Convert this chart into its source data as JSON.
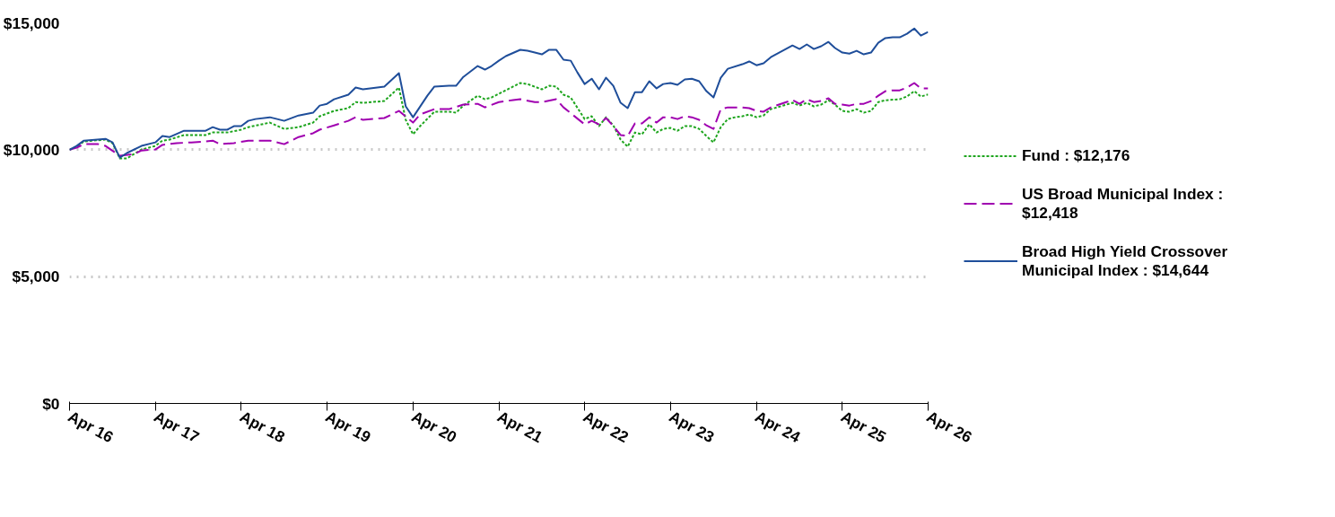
{
  "chart_data": {
    "type": "line",
    "xlim": [
      "2016-04",
      "2026-04"
    ],
    "xticks": [
      {
        "value": "2016-04",
        "label": "Apr 16"
      },
      {
        "value": "2017-04",
        "label": "Apr 17"
      },
      {
        "value": "2018-04",
        "label": "Apr 18"
      },
      {
        "value": "2019-04",
        "label": "Apr 19"
      },
      {
        "value": "2020-04",
        "label": "Apr 20"
      },
      {
        "value": "2021-04",
        "label": "Apr 21"
      },
      {
        "value": "2022-04",
        "label": "Apr 22"
      },
      {
        "value": "2023-04",
        "label": "Apr 23"
      },
      {
        "value": "2024-04",
        "label": "Apr 24"
      },
      {
        "value": "2025-04",
        "label": "Apr 25"
      },
      {
        "value": "2026-04",
        "label": "Apr 26"
      }
    ],
    "ylim": [
      0,
      15000
    ],
    "yticks": [
      {
        "value": 0,
        "label": "$0"
      },
      {
        "value": 5000,
        "label": "$5,000"
      },
      {
        "value": 10000,
        "label": "$10,000"
      },
      {
        "value": 15000,
        "label": "$15,000"
      }
    ],
    "grid": "y",
    "legend": "right",
    "series": [
      {
        "name": "Fund : $12,176",
        "color": "#1ea51e",
        "line_style": "dotted",
        "x": [
          "2016-04",
          "2016-05",
          "2016-06",
          "2016-09",
          "2016-10",
          "2016-11",
          "2016-12",
          "2017-02",
          "2017-04",
          "2017-05",
          "2017-06",
          "2017-08",
          "2017-11",
          "2017-12",
          "2018-02",
          "2018-04",
          "2018-05",
          "2018-08",
          "2018-10",
          "2018-12",
          "2019-02",
          "2019-03",
          "2019-05",
          "2019-07",
          "2019-08",
          "2019-09",
          "2019-12",
          "2020-02",
          "2020-03",
          "2020-04",
          "2020-05",
          "2020-07",
          "2020-09",
          "2020-10",
          "2020-11",
          "2021-01",
          "2021-02",
          "2021-03",
          "2021-06",
          "2021-07",
          "2021-08",
          "2021-10",
          "2021-11",
          "2021-12",
          "2022-01",
          "2022-02",
          "2022-04",
          "2022-05",
          "2022-06",
          "2022-07",
          "2022-08",
          "2022-09",
          "2022-10",
          "2022-11",
          "2022-12",
          "2023-01",
          "2023-02",
          "2023-03",
          "2023-04",
          "2023-05",
          "2023-06",
          "2023-07",
          "2023-08",
          "2023-09",
          "2023-10",
          "2023-11",
          "2023-12",
          "2024-01",
          "2024-02",
          "2024-03",
          "2024-04",
          "2024-05",
          "2024-06",
          "2024-09",
          "2024-10",
          "2024-11",
          "2024-12",
          "2025-01",
          "2025-02",
          "2025-03",
          "2025-04",
          "2025-05",
          "2025-06",
          "2025-07",
          "2025-08",
          "2025-09",
          "2025-10",
          "2025-12",
          "2026-01",
          "2026-02",
          "2026-03",
          "2026-04"
        ],
        "values": [
          10000,
          10120,
          10330,
          10400,
          10260,
          9660,
          9660,
          10010,
          10150,
          10360,
          10400,
          10580,
          10580,
          10680,
          10680,
          10790,
          10890,
          11070,
          10820,
          10890,
          11070,
          11320,
          11530,
          11640,
          11880,
          11850,
          11920,
          12450,
          11180,
          10610,
          10930,
          11500,
          11500,
          11460,
          11740,
          12130,
          11990,
          12060,
          12490,
          12630,
          12590,
          12380,
          12520,
          12490,
          12170,
          12060,
          11210,
          11320,
          10930,
          11280,
          10960,
          10400,
          10120,
          10680,
          10610,
          11000,
          10680,
          10820,
          10860,
          10750,
          10930,
          10930,
          10820,
          10540,
          10290,
          10890,
          11210,
          11280,
          11320,
          11390,
          11280,
          11350,
          11600,
          11850,
          11740,
          11850,
          11710,
          11780,
          11950,
          11780,
          11530,
          11500,
          11600,
          11460,
          11530,
          11880,
          11950,
          11990,
          12100,
          12310,
          12100,
          12176
        ]
      },
      {
        "name": "US Broad Municipal Index : $12,418",
        "color": "#a000b0",
        "line_style": "dashed",
        "x": [
          "2016-04",
          "2016-05",
          "2016-06",
          "2016-08",
          "2016-09",
          "2016-11",
          "2017-01",
          "2017-02",
          "2017-04",
          "2017-05",
          "2017-07",
          "2017-09",
          "2017-11",
          "2017-12",
          "2018-01",
          "2018-03",
          "2018-05",
          "2018-08",
          "2018-10",
          "2018-12",
          "2019-02",
          "2019-03",
          "2019-05",
          "2019-07",
          "2019-08",
          "2019-09",
          "2019-12",
          "2020-02",
          "2020-04",
          "2020-05",
          "2020-07",
          "2020-09",
          "2020-11",
          "2021-01",
          "2021-02",
          "2021-04",
          "2021-06",
          "2021-07",
          "2021-09",
          "2021-10",
          "2021-12",
          "2022-01",
          "2022-04",
          "2022-05",
          "2022-06",
          "2022-07",
          "2022-08",
          "2022-09",
          "2022-10",
          "2022-11",
          "2022-12",
          "2023-01",
          "2023-02",
          "2023-03",
          "2023-04",
          "2023-05",
          "2023-06",
          "2023-07",
          "2023-08",
          "2023-09",
          "2023-10",
          "2023-11",
          "2023-12",
          "2024-02",
          "2024-03",
          "2024-04",
          "2024-05",
          "2024-06",
          "2024-09",
          "2024-10",
          "2024-11",
          "2024-12",
          "2025-01",
          "2025-02",
          "2025-03",
          "2025-04",
          "2025-05",
          "2025-06",
          "2025-07",
          "2025-08",
          "2025-09",
          "2025-10",
          "2025-11",
          "2025-12",
          "2026-01",
          "2026-02",
          "2026-03",
          "2026-04"
        ],
        "values": [
          10000,
          10080,
          10220,
          10220,
          10150,
          9760,
          9830,
          9970,
          10010,
          10190,
          10260,
          10290,
          10330,
          10360,
          10220,
          10260,
          10360,
          10360,
          10220,
          10500,
          10650,
          10790,
          10960,
          11140,
          11280,
          11180,
          11250,
          11530,
          11070,
          11390,
          11600,
          11600,
          11780,
          11810,
          11670,
          11880,
          11960,
          11990,
          11880,
          11880,
          11990,
          11670,
          11000,
          11140,
          11000,
          11250,
          10930,
          10580,
          10540,
          11040,
          11040,
          11280,
          11070,
          11280,
          11280,
          11210,
          11320,
          11280,
          11180,
          10960,
          10820,
          11600,
          11670,
          11670,
          11640,
          11530,
          11500,
          11670,
          11960,
          11810,
          11990,
          11880,
          11920,
          12030,
          11810,
          11780,
          11740,
          11810,
          11810,
          11920,
          12130,
          12310,
          12340,
          12340,
          12450,
          12630,
          12420,
          12418
        ]
      },
      {
        "name": "Broad High Yield Crossover Municipal Index : $14,644",
        "color": "#1f4e9a",
        "line_style": "solid",
        "x": [
          "2016-04",
          "2016-05",
          "2016-06",
          "2016-09",
          "2016-10",
          "2016-11",
          "2016-12",
          "2017-02",
          "2017-04",
          "2017-05",
          "2017-06",
          "2017-08",
          "2017-09",
          "2017-11",
          "2017-12",
          "2018-01",
          "2018-02",
          "2018-03",
          "2018-04",
          "2018-05",
          "2018-06",
          "2018-08",
          "2018-09",
          "2018-10",
          "2018-12",
          "2019-02",
          "2019-03",
          "2019-04",
          "2019-05",
          "2019-07",
          "2019-08",
          "2019-09",
          "2019-11",
          "2019-12",
          "2020-02",
          "2020-03",
          "2020-04",
          "2020-06",
          "2020-07",
          "2020-09",
          "2020-10",
          "2020-11",
          "2021-01",
          "2021-02",
          "2021-03",
          "2021-04",
          "2021-05",
          "2021-07",
          "2021-08",
          "2021-09",
          "2021-10",
          "2021-11",
          "2021-12",
          "2022-01",
          "2022-02",
          "2022-03",
          "2022-04",
          "2022-05",
          "2022-06",
          "2022-07",
          "2022-08",
          "2022-09",
          "2022-10",
          "2022-11",
          "2022-12",
          "2023-01",
          "2023-02",
          "2023-03",
          "2023-04",
          "2023-05",
          "2023-06",
          "2023-07",
          "2023-08",
          "2023-09",
          "2023-10",
          "2023-11",
          "2023-12",
          "2024-02",
          "2024-03",
          "2024-04",
          "2024-05",
          "2024-06",
          "2024-09",
          "2024-10",
          "2024-11",
          "2024-12",
          "2025-01",
          "2025-02",
          "2025-03",
          "2025-04",
          "2025-05",
          "2025-06",
          "2025-07",
          "2025-08",
          "2025-09",
          "2025-10",
          "2025-11",
          "2025-12",
          "2026-01",
          "2026-02",
          "2026-03",
          "2026-04"
        ],
        "values": [
          10000,
          10150,
          10360,
          10430,
          10290,
          9690,
          9870,
          10150,
          10290,
          10540,
          10500,
          10750,
          10750,
          10750,
          10890,
          10790,
          10790,
          10930,
          10930,
          11140,
          11210,
          11280,
          11210,
          11140,
          11350,
          11460,
          11740,
          11810,
          11990,
          12170,
          12450,
          12380,
          12450,
          12490,
          13020,
          11710,
          11280,
          12130,
          12490,
          12520,
          12520,
          12870,
          13300,
          13160,
          13300,
          13510,
          13690,
          13940,
          13900,
          13830,
          13760,
          13940,
          13940,
          13550,
          13510,
          13050,
          12590,
          12800,
          12380,
          12840,
          12520,
          11850,
          11640,
          12270,
          12270,
          12700,
          12420,
          12590,
          12630,
          12560,
          12770,
          12800,
          12700,
          12310,
          12060,
          12840,
          13190,
          13370,
          13480,
          13330,
          13410,
          13650,
          14110,
          13970,
          14150,
          13970,
          14080,
          14250,
          14010,
          13830,
          13790,
          13900,
          13760,
          13830,
          14220,
          14400,
          14430,
          14430,
          14570,
          14780,
          14500,
          14644
        ]
      }
    ]
  }
}
